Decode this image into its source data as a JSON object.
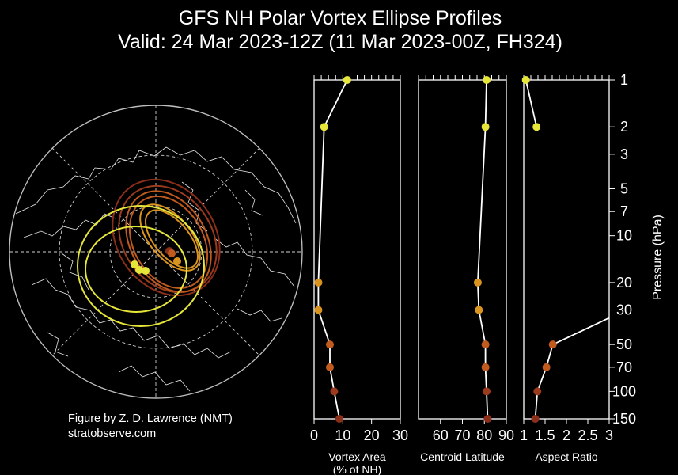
{
  "title": {
    "line1": "GFS NH Polar Vortex Ellipse Profiles",
    "line2": "Valid: 24 Mar 2023-12Z  (11 Mar 2023-00Z, FH324)"
  },
  "credit": {
    "author": "Figure by Z. D. Lawrence (NMT)",
    "site": "stratobserve.com"
  },
  "colors": {
    "background": "#000000",
    "axes": "#ffffff",
    "level_1": "#e6e63a",
    "level_2": "#e6e63a",
    "level_20": "#d9931f",
    "level_30": "#d9931f",
    "level_50": "#c05a1e",
    "level_70": "#c05a1e",
    "level_100": "#9b3a1c",
    "level_150": "#8b2f1a"
  },
  "chart_data": [
    {
      "type": "scatter",
      "name": "vortex-area",
      "xlabel": "Vortex Area\n(% of NH)",
      "xlim": [
        0,
        30
      ],
      "xticks": [
        "0",
        "10",
        "20",
        "30"
      ],
      "ylim": [
        150,
        1
      ],
      "yscale": "log",
      "points": [
        {
          "p": 1,
          "x": 11.5
        },
        {
          "p": 2,
          "x": 3.5
        },
        {
          "p": 20,
          "x": 1.5
        },
        {
          "p": 30,
          "x": 1.5
        },
        {
          "p": 50,
          "x": 5.5
        },
        {
          "p": 70,
          "x": 5.5
        },
        {
          "p": 100,
          "x": 7.0
        },
        {
          "p": 150,
          "x": 8.8
        }
      ]
    },
    {
      "type": "scatter",
      "name": "centroid-latitude",
      "xlabel": "Centroid Latitude",
      "xlim": [
        50,
        90
      ],
      "xticks": [
        "60",
        "70",
        "80",
        "90"
      ],
      "ylim": [
        150,
        1
      ],
      "yscale": "log",
      "points": [
        {
          "p": 1,
          "x": 81.0
        },
        {
          "p": 2,
          "x": 80.5
        },
        {
          "p": 20,
          "x": 77.0
        },
        {
          "p": 30,
          "x": 77.5
        },
        {
          "p": 50,
          "x": 80.5
        },
        {
          "p": 70,
          "x": 80.5
        },
        {
          "p": 100,
          "x": 81.0
        },
        {
          "p": 150,
          "x": 81.5
        }
      ]
    },
    {
      "type": "scatter",
      "name": "aspect-ratio",
      "xlabel": "Aspect Ratio",
      "xlim": [
        1,
        3
      ],
      "xticks": [
        "1",
        "1.5",
        "2",
        "2.5",
        "3"
      ],
      "ylim": [
        150,
        1
      ],
      "yscale": "log",
      "ylabel": "Pressure (hPa)",
      "yticks": [
        "1",
        "2",
        "3",
        "5",
        "7",
        "10",
        "20",
        "30",
        "50",
        "70",
        "100",
        "150"
      ],
      "points": [
        {
          "p": 1,
          "x": 1.05
        },
        {
          "p": 2,
          "x": 1.3
        },
        {
          "p": 20,
          "x": null
        },
        {
          "p": 30,
          "x": null
        },
        {
          "p": 50,
          "x": 1.68
        },
        {
          "p": 70,
          "x": 1.53
        },
        {
          "p": 100,
          "x": 1.32
        },
        {
          "p": 150,
          "x": 1.27
        }
      ],
      "offscale_line": true
    }
  ]
}
